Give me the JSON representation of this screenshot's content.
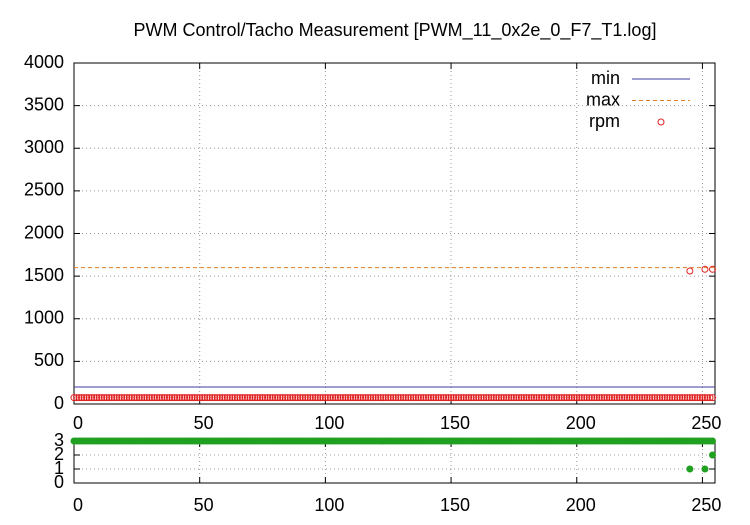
{
  "chart_data": [
    {
      "type": "scatter",
      "title": "PWM Control/Tacho Measurement [PWM_11_0x2e_0_F7_T1.log]",
      "xlim": [
        0,
        255
      ],
      "xticks": [
        0,
        50,
        100,
        150,
        200,
        250
      ],
      "ylim": [
        0,
        4000
      ],
      "yticks": [
        0,
        500,
        1000,
        1500,
        2000,
        2500,
        3000,
        3500,
        4000
      ],
      "grid": true,
      "legend": "top-right",
      "series": [
        {
          "name": "min",
          "color": "#3c3c9c",
          "style": "line",
          "x": [
            0,
            255
          ],
          "values": [
            200,
            200
          ]
        },
        {
          "name": "max",
          "color": "#e08020",
          "style": "dashed",
          "x": [
            0,
            255
          ],
          "values": [
            1600,
            1600
          ]
        },
        {
          "name": "rpm",
          "color": "#e02020",
          "style": "open-points",
          "x": [
            0,
            1,
            2,
            3,
            4,
            5,
            6,
            7,
            8,
            9,
            10,
            11,
            12,
            13,
            14,
            15,
            16,
            17,
            18,
            19,
            20,
            21,
            22,
            23,
            24,
            25,
            26,
            27,
            28,
            29,
            30,
            31,
            32,
            33,
            34,
            35,
            36,
            37,
            38,
            39,
            40,
            41,
            42,
            43,
            44,
            45,
            46,
            47,
            48,
            49,
            50,
            51,
            52,
            53,
            54,
            55,
            56,
            57,
            58,
            59,
            60,
            61,
            62,
            63,
            64,
            65,
            66,
            67,
            68,
            69,
            70,
            71,
            72,
            73,
            74,
            75,
            76,
            77,
            78,
            79,
            80,
            81,
            82,
            83,
            84,
            85,
            86,
            87,
            88,
            89,
            90,
            91,
            92,
            93,
            94,
            95,
            96,
            97,
            98,
            99,
            100,
            101,
            102,
            103,
            104,
            105,
            106,
            107,
            108,
            109,
            110,
            111,
            112,
            113,
            114,
            115,
            116,
            117,
            118,
            119,
            120,
            121,
            122,
            123,
            124,
            125,
            126,
            127,
            128,
            129,
            130,
            131,
            132,
            133,
            134,
            135,
            136,
            137,
            138,
            139,
            140,
            141,
            142,
            143,
            144,
            145,
            146,
            147,
            148,
            149,
            150,
            151,
            152,
            153,
            154,
            155,
            156,
            157,
            158,
            159,
            160,
            161,
            162,
            163,
            164,
            165,
            166,
            167,
            168,
            169,
            170,
            171,
            172,
            173,
            174,
            175,
            176,
            177,
            178,
            179,
            180,
            181,
            182,
            183,
            184,
            185,
            186,
            187,
            188,
            189,
            190,
            191,
            192,
            193,
            194,
            195,
            196,
            197,
            198,
            199,
            200,
            201,
            202,
            203,
            204,
            205,
            206,
            207,
            208,
            209,
            210,
            211,
            212,
            213,
            214,
            215,
            216,
            217,
            218,
            219,
            220,
            221,
            222,
            223,
            224,
            225,
            226,
            227,
            228,
            229,
            230,
            231,
            232,
            233,
            234,
            235,
            236,
            237,
            238,
            239,
            240,
            241,
            242,
            243,
            244,
            245,
            246,
            247,
            248,
            249,
            250,
            251,
            252,
            253,
            254,
            245,
            251,
            254
          ],
          "values": [
            75,
            75,
            75,
            75,
            75,
            75,
            75,
            75,
            75,
            75,
            75,
            75,
            75,
            75,
            75,
            75,
            75,
            75,
            75,
            75,
            75,
            75,
            75,
            75,
            75,
            75,
            75,
            75,
            75,
            75,
            75,
            75,
            75,
            75,
            75,
            75,
            75,
            75,
            75,
            75,
            75,
            75,
            75,
            75,
            75,
            75,
            75,
            75,
            75,
            75,
            75,
            75,
            75,
            75,
            75,
            75,
            75,
            75,
            75,
            75,
            75,
            75,
            75,
            75,
            75,
            75,
            75,
            75,
            75,
            75,
            75,
            75,
            75,
            75,
            75,
            75,
            75,
            75,
            75,
            75,
            75,
            75,
            75,
            75,
            75,
            75,
            75,
            75,
            75,
            75,
            75,
            75,
            75,
            75,
            75,
            75,
            75,
            75,
            75,
            75,
            75,
            75,
            75,
            75,
            75,
            75,
            75,
            75,
            75,
            75,
            75,
            75,
            75,
            75,
            75,
            75,
            75,
            75,
            75,
            75,
            75,
            75,
            75,
            75,
            75,
            75,
            75,
            75,
            75,
            75,
            75,
            75,
            75,
            75,
            75,
            75,
            75,
            75,
            75,
            75,
            75,
            75,
            75,
            75,
            75,
            75,
            75,
            75,
            75,
            75,
            75,
            75,
            75,
            75,
            75,
            75,
            75,
            75,
            75,
            75,
            75,
            75,
            75,
            75,
            75,
            75,
            75,
            75,
            75,
            75,
            75,
            75,
            75,
            75,
            75,
            75,
            75,
            75,
            75,
            75,
            75,
            75,
            75,
            75,
            75,
            75,
            75,
            75,
            75,
            75,
            75,
            75,
            75,
            75,
            75,
            75,
            75,
            75,
            75,
            75,
            75,
            75,
            75,
            75,
            75,
            75,
            75,
            75,
            75,
            75,
            75,
            75,
            75,
            75,
            75,
            75,
            75,
            75,
            75,
            75,
            75,
            75,
            75,
            75,
            75,
            75,
            75,
            75,
            75,
            75,
            75,
            75,
            75,
            75,
            75,
            75,
            75,
            75,
            75,
            75,
            75,
            75,
            75,
            75,
            75,
            75,
            75,
            75,
            75,
            75,
            75,
            75,
            75,
            75,
            75,
            1560,
            1580,
            1580
          ]
        }
      ]
    },
    {
      "type": "scatter",
      "xlim": [
        0,
        255
      ],
      "xticks": [
        0,
        50,
        100,
        150,
        200,
        250
      ],
      "ylim": [
        0,
        3
      ],
      "yticks": [
        0,
        1,
        2,
        3
      ],
      "grid": true,
      "series": [
        {
          "color": "#20a020",
          "style": "filled-points",
          "x": [
            0,
            1,
            2,
            3,
            4,
            5,
            6,
            7,
            8,
            9,
            10,
            11,
            12,
            13,
            14,
            15,
            16,
            17,
            18,
            19,
            20,
            21,
            22,
            23,
            24,
            25,
            26,
            27,
            28,
            29,
            30,
            31,
            32,
            33,
            34,
            35,
            36,
            37,
            38,
            39,
            40,
            41,
            42,
            43,
            44,
            45,
            46,
            47,
            48,
            49,
            50,
            51,
            52,
            53,
            54,
            55,
            56,
            57,
            58,
            59,
            60,
            61,
            62,
            63,
            64,
            65,
            66,
            67,
            68,
            69,
            70,
            71,
            72,
            73,
            74,
            75,
            76,
            77,
            78,
            79,
            80,
            81,
            82,
            83,
            84,
            85,
            86,
            87,
            88,
            89,
            90,
            91,
            92,
            93,
            94,
            95,
            96,
            97,
            98,
            99,
            100,
            101,
            102,
            103,
            104,
            105,
            106,
            107,
            108,
            109,
            110,
            111,
            112,
            113,
            114,
            115,
            116,
            117,
            118,
            119,
            120,
            121,
            122,
            123,
            124,
            125,
            126,
            127,
            128,
            129,
            130,
            131,
            132,
            133,
            134,
            135,
            136,
            137,
            138,
            139,
            140,
            141,
            142,
            143,
            144,
            145,
            146,
            147,
            148,
            149,
            150,
            151,
            152,
            153,
            154,
            155,
            156,
            157,
            158,
            159,
            160,
            161,
            162,
            163,
            164,
            165,
            166,
            167,
            168,
            169,
            170,
            171,
            172,
            173,
            174,
            175,
            176,
            177,
            178,
            179,
            180,
            181,
            182,
            183,
            184,
            185,
            186,
            187,
            188,
            189,
            190,
            191,
            192,
            193,
            194,
            195,
            196,
            197,
            198,
            199,
            200,
            201,
            202,
            203,
            204,
            205,
            206,
            207,
            208,
            209,
            210,
            211,
            212,
            213,
            214,
            215,
            216,
            217,
            218,
            219,
            220,
            221,
            222,
            223,
            224,
            225,
            226,
            227,
            228,
            229,
            230,
            231,
            232,
            233,
            234,
            235,
            236,
            237,
            238,
            239,
            240,
            241,
            242,
            243,
            244,
            245,
            246,
            247,
            248,
            249,
            250,
            251,
            252,
            253,
            254,
            245,
            251,
            254
          ],
          "values": [
            3,
            3,
            3,
            3,
            3,
            3,
            3,
            3,
            3,
            3,
            3,
            3,
            3,
            3,
            3,
            3,
            3,
            3,
            3,
            3,
            3,
            3,
            3,
            3,
            3,
            3,
            3,
            3,
            3,
            3,
            3,
            3,
            3,
            3,
            3,
            3,
            3,
            3,
            3,
            3,
            3,
            3,
            3,
            3,
            3,
            3,
            3,
            3,
            3,
            3,
            3,
            3,
            3,
            3,
            3,
            3,
            3,
            3,
            3,
            3,
            3,
            3,
            3,
            3,
            3,
            3,
            3,
            3,
            3,
            3,
            3,
            3,
            3,
            3,
            3,
            3,
            3,
            3,
            3,
            3,
            3,
            3,
            3,
            3,
            3,
            3,
            3,
            3,
            3,
            3,
            3,
            3,
            3,
            3,
            3,
            3,
            3,
            3,
            3,
            3,
            3,
            3,
            3,
            3,
            3,
            3,
            3,
            3,
            3,
            3,
            3,
            3,
            3,
            3,
            3,
            3,
            3,
            3,
            3,
            3,
            3,
            3,
            3,
            3,
            3,
            3,
            3,
            3,
            3,
            3,
            3,
            3,
            3,
            3,
            3,
            3,
            3,
            3,
            3,
            3,
            3,
            3,
            3,
            3,
            3,
            3,
            3,
            3,
            3,
            3,
            3,
            3,
            3,
            3,
            3,
            3,
            3,
            3,
            3,
            3,
            3,
            3,
            3,
            3,
            3,
            3,
            3,
            3,
            3,
            3,
            3,
            3,
            3,
            3,
            3,
            3,
            3,
            3,
            3,
            3,
            3,
            3,
            3,
            3,
            3,
            3,
            3,
            3,
            3,
            3,
            3,
            3,
            3,
            3,
            3,
            3,
            3,
            3,
            3,
            3,
            3,
            3,
            3,
            3,
            3,
            3,
            3,
            3,
            3,
            3,
            3,
            3,
            3,
            3,
            3,
            3,
            3,
            3,
            3,
            3,
            3,
            3,
            3,
            3,
            3,
            3,
            3,
            3,
            3,
            3,
            3,
            3,
            3,
            3,
            3,
            3,
            3,
            3,
            3,
            3,
            3,
            3,
            3,
            3,
            3,
            3,
            3,
            3,
            3,
            3,
            3,
            3,
            3,
            3,
            3,
            1,
            1,
            2
          ]
        }
      ]
    }
  ]
}
